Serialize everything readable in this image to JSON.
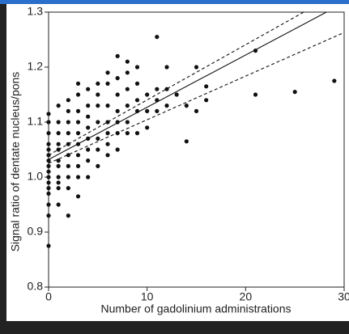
{
  "chart_data": {
    "type": "scatter",
    "xlabel": "Number of gadolinium administrations",
    "ylabel": "Signal ratio of dentate nucleus/pons",
    "xlim": [
      0,
      30
    ],
    "ylim": [
      0.8,
      1.3
    ],
    "xticks": [
      0,
      10,
      20,
      30
    ],
    "yticks": [
      0.8,
      0.9,
      {
        "value": 1,
        "label": "1.0"
      },
      1.1,
      1.2,
      1.3
    ],
    "series": [
      {
        "kind": "points",
        "color": "#111111",
        "x": [
          0,
          0,
          0,
          0,
          0,
          0,
          0,
          0,
          0,
          0,
          0,
          0,
          0,
          0,
          0,
          0,
          1,
          1,
          1,
          1,
          1,
          1,
          1,
          1,
          1,
          1,
          1,
          2,
          2,
          2,
          2,
          2,
          2,
          2,
          2,
          2,
          2,
          3,
          3,
          3,
          3,
          3,
          3,
          3,
          3,
          3,
          3,
          4,
          4,
          4,
          4,
          4,
          4,
          4,
          4,
          5,
          5,
          5,
          5,
          5,
          5,
          5,
          6,
          6,
          6,
          6,
          6,
          6,
          6,
          7,
          7,
          7,
          7,
          7,
          7,
          7,
          8,
          8,
          8,
          8,
          8,
          8,
          9,
          9,
          9,
          9,
          9,
          10,
          10,
          10,
          11,
          11,
          11,
          11,
          12,
          12,
          12,
          13,
          14,
          14,
          15,
          15,
          16,
          16,
          21,
          21,
          25,
          29
        ],
        "values": [
          0.875,
          0.93,
          0.95,
          0.97,
          0.98,
          0.99,
          1.0,
          1.01,
          1.02,
          1.03,
          1.04,
          1.05,
          1.06,
          1.08,
          1.1,
          1.115,
          0.95,
          0.98,
          0.99,
          1.0,
          1.02,
          1.03,
          1.05,
          1.06,
          1.08,
          1.1,
          1.13,
          0.93,
          0.98,
          1.0,
          1.02,
          1.04,
          1.06,
          1.08,
          1.1,
          1.12,
          1.14,
          0.965,
          1.0,
          1.02,
          1.04,
          1.06,
          1.08,
          1.1,
          1.12,
          1.15,
          1.17,
          1.0,
          1.03,
          1.05,
          1.07,
          1.09,
          1.11,
          1.13,
          1.16,
          1.02,
          1.05,
          1.07,
          1.1,
          1.13,
          1.15,
          1.17,
          1.04,
          1.06,
          1.08,
          1.1,
          1.13,
          1.17,
          1.19,
          1.05,
          1.08,
          1.1,
          1.12,
          1.15,
          1.18,
          1.22,
          1.08,
          1.1,
          1.13,
          1.16,
          1.19,
          1.21,
          1.08,
          1.12,
          1.14,
          1.17,
          1.2,
          1.09,
          1.12,
          1.15,
          1.12,
          1.14,
          1.16,
          1.255,
          1.13,
          1.16,
          1.2,
          1.15,
          1.065,
          1.13,
          1.2,
          1.12,
          1.165,
          1.14,
          1.23,
          1.15,
          1.155,
          1.175
        ]
      },
      {
        "kind": "line",
        "dash": false,
        "color": "#111111",
        "x": [
          0,
          28.2
        ],
        "values": [
          1.032,
          1.3
        ]
      },
      {
        "kind": "line",
        "dash": true,
        "color": "#111111",
        "x": [
          0,
          25.9
        ],
        "values": [
          1.04,
          1.3
        ]
      },
      {
        "kind": "line",
        "dash": true,
        "color": "#111111",
        "x": [
          0,
          30
        ],
        "values": [
          1.025,
          1.263
        ]
      }
    ]
  }
}
